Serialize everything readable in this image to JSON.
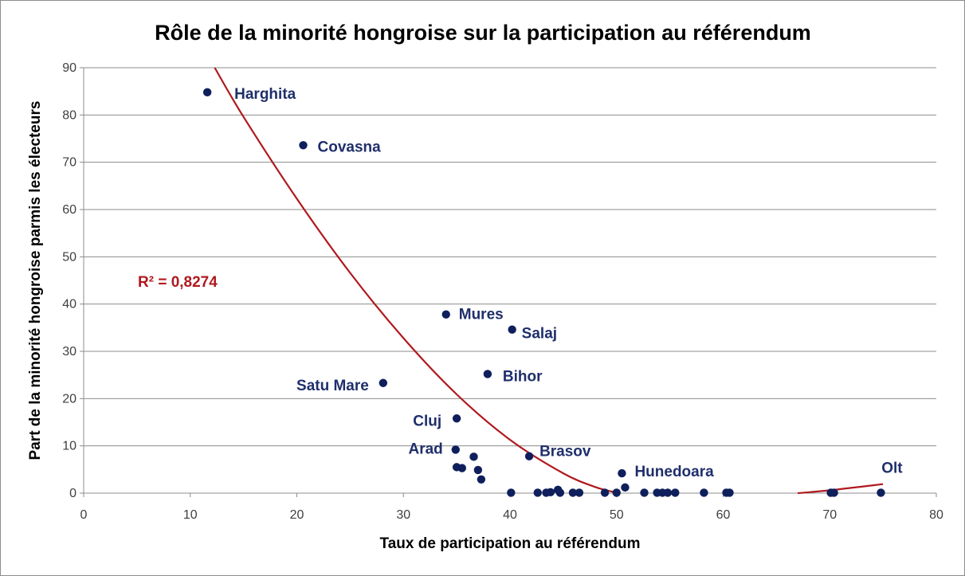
{
  "chart_data": {
    "type": "scatter",
    "title": "Rôle de la minorité hongroise sur la participation au référendum",
    "xlabel": "Taux de participation au référendum",
    "ylabel": "Part de la minorité hongroise parmis les électeurs",
    "xlim": [
      0,
      80
    ],
    "ylim": [
      0,
      90
    ],
    "x_ticks": [
      "0",
      "10",
      "20",
      "30",
      "40",
      "50",
      "60",
      "70",
      "80"
    ],
    "y_ticks": [
      "0",
      "10",
      "20",
      "30",
      "40",
      "50",
      "60",
      "70",
      "80",
      "90"
    ],
    "grid": "horizontal",
    "colors": {
      "points": "#0f1f5c",
      "labels": "#1f2f6b",
      "trendline": "#b0191e",
      "grid": "#8c8c8c"
    },
    "annotation": "R² = 0,8274",
    "points": [
      {
        "x": 11.6,
        "y": 84.8,
        "label": "Harghita"
      },
      {
        "x": 20.6,
        "y": 73.6,
        "label": "Covasna"
      },
      {
        "x": 34.0,
        "y": 37.8,
        "label": "Mures"
      },
      {
        "x": 40.2,
        "y": 34.6,
        "label": "Salaj"
      },
      {
        "x": 28.1,
        "y": 23.3,
        "label": "Satu Mare"
      },
      {
        "x": 37.9,
        "y": 25.2,
        "label": "Bihor"
      },
      {
        "x": 35.0,
        "y": 15.8,
        "label": "Cluj"
      },
      {
        "x": 34.9,
        "y": 9.2,
        "label": "Arad"
      },
      {
        "x": 41.8,
        "y": 7.8,
        "label": "Brasov"
      },
      {
        "x": 50.5,
        "y": 4.2,
        "label": "Hunedoara"
      },
      {
        "x": 74.8,
        "y": 0.1,
        "label": "Olt"
      },
      {
        "x": 35.0,
        "y": 5.5
      },
      {
        "x": 35.5,
        "y": 5.3
      },
      {
        "x": 36.6,
        "y": 7.7
      },
      {
        "x": 37.0,
        "y": 4.9
      },
      {
        "x": 37.3,
        "y": 2.9
      },
      {
        "x": 40.1,
        "y": 0.1
      },
      {
        "x": 42.6,
        "y": 0.1
      },
      {
        "x": 43.4,
        "y": 0.1
      },
      {
        "x": 43.8,
        "y": 0.2
      },
      {
        "x": 44.5,
        "y": 0.7
      },
      {
        "x": 44.7,
        "y": 0.1
      },
      {
        "x": 45.9,
        "y": 0.1
      },
      {
        "x": 46.5,
        "y": 0.1
      },
      {
        "x": 48.9,
        "y": 0.1
      },
      {
        "x": 50.0,
        "y": 0.1
      },
      {
        "x": 50.8,
        "y": 1.2
      },
      {
        "x": 52.6,
        "y": 0.1
      },
      {
        "x": 53.8,
        "y": 0.1
      },
      {
        "x": 54.3,
        "y": 0.1
      },
      {
        "x": 54.8,
        "y": 0.1
      },
      {
        "x": 55.5,
        "y": 0.1
      },
      {
        "x": 58.2,
        "y": 0.1
      },
      {
        "x": 60.3,
        "y": 0.1
      },
      {
        "x": 60.6,
        "y": 0.1
      },
      {
        "x": 70.1,
        "y": 0.1
      },
      {
        "x": 70.4,
        "y": 0.1
      }
    ],
    "trendline": {
      "type": "polynomial",
      "points": [
        {
          "x": 12.3,
          "y": 90
        },
        {
          "x": 15,
          "y": 79.6
        },
        {
          "x": 20,
          "y": 62.3
        },
        {
          "x": 25,
          "y": 46.6
        },
        {
          "x": 30,
          "y": 32.8
        },
        {
          "x": 35,
          "y": 20.9
        },
        {
          "x": 40,
          "y": 11.3
        },
        {
          "x": 45,
          "y": 4.2
        },
        {
          "x": 48,
          "y": 1.3
        },
        {
          "x": 50,
          "y": 0.1
        }
      ],
      "segment2": [
        {
          "x": 67,
          "y": 0
        },
        {
          "x": 70,
          "y": 0.6
        },
        {
          "x": 75,
          "y": 1.9
        }
      ]
    }
  }
}
